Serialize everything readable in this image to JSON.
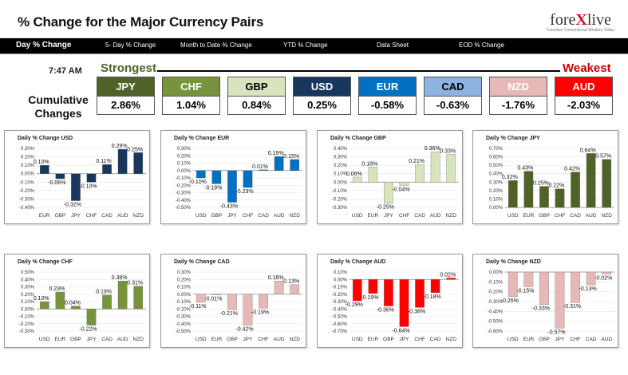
{
  "header": {
    "title": "% Change for the Major Currency Pairs",
    "logo_text": "forexlive",
    "logo_tagline": "Forexlive Conventional Wisdom Today"
  },
  "nav": {
    "items": [
      "Day % Change",
      "5- Day % Change",
      "Month to Date % Change",
      "YTD % Change",
      "Data Sheet",
      "EOD % Change"
    ],
    "active": "Day % Change"
  },
  "summary": {
    "time": "7:47 AM",
    "strongest": "Strongest",
    "weakest": "Weakest",
    "cumulative_label": "Cumulative Changes",
    "currencies": [
      {
        "code": "JPY",
        "value": "2.86%",
        "bg": "#4f6228",
        "fg": "#ffffff"
      },
      {
        "code": "CHF",
        "value": "1.04%",
        "bg": "#77933c",
        "fg": "#ffffff"
      },
      {
        "code": "GBP",
        "value": "0.84%",
        "bg": "#d7e4bd",
        "fg": "#000000"
      },
      {
        "code": "USD",
        "value": "0.25%",
        "bg": "#17375e",
        "fg": "#ffffff"
      },
      {
        "code": "EUR",
        "value": "-0.58%",
        "bg": "#0070c0",
        "fg": "#ffffff"
      },
      {
        "code": "CAD",
        "value": "-0.63%",
        "bg": "#8db3e2",
        "fg": "#000000"
      },
      {
        "code": "NZD",
        "value": "-1.76%",
        "bg": "#e6b9b8",
        "fg": "#ffffff"
      },
      {
        "code": "AUD",
        "value": "-2.03%",
        "bg": "#ff0000",
        "fg": "#ffffff"
      }
    ]
  },
  "chart_data": [
    {
      "type": "bar",
      "title": "Daily % Change USD",
      "categories": [
        "EUR",
        "GBP",
        "JPY",
        "CHF",
        "CAD",
        "AUD",
        "NZD"
      ],
      "values": [
        0.1,
        -0.06,
        -0.32,
        -0.1,
        0.11,
        0.29,
        0.25
      ],
      "labels": [
        "0.10%",
        "-0.06%",
        "-0.32%",
        "-0.10%",
        "0.11%",
        "0.29%",
        "0.25%"
      ],
      "ylim": [
        -0.4,
        0.3
      ],
      "yticks": [
        "0.30%",
        "0.20%",
        "0.10%",
        "0.00%",
        "-0.10%",
        "-0.20%",
        "-0.30%",
        "-0.40%"
      ],
      "color": "#17375e"
    },
    {
      "type": "bar",
      "title": "Daily % Change EUR",
      "categories": [
        "USD",
        "GBP",
        "JPY",
        "CHF",
        "CAD",
        "AUD",
        "NZD"
      ],
      "values": [
        -0.1,
        -0.18,
        -0.43,
        -0.23,
        0.01,
        0.19,
        0.15
      ],
      "labels": [
        "-0.10%",
        "-0.18%",
        "-0.43%",
        "-0.23%",
        "0.01%",
        "0.19%",
        "0.15%"
      ],
      "ylim": [
        -0.5,
        0.3
      ],
      "yticks": [
        "0.30%",
        "0.20%",
        "0.10%",
        "0.00%",
        "-0.10%",
        "-0.20%",
        "-0.30%",
        "-0.40%",
        "-0.50%"
      ],
      "color": "#0070c0"
    },
    {
      "type": "bar",
      "title": "Daily % Change GBP",
      "categories": [
        "USD",
        "EUR",
        "JPY",
        "CHF",
        "CAD",
        "AUD",
        "NZD"
      ],
      "values": [
        0.06,
        0.18,
        -0.25,
        -0.04,
        0.21,
        0.36,
        0.33
      ],
      "labels": [
        "0.06%",
        "0.18%",
        "-0.25%",
        "-0.04%",
        "0.21%",
        "0.36%",
        "0.33%"
      ],
      "ylim": [
        -0.3,
        0.4
      ],
      "yticks": [
        "0.40%",
        "0.30%",
        "0.20%",
        "0.10%",
        "0.00%",
        "-0.10%",
        "-0.20%",
        "-0.30%"
      ],
      "color": "#d7e4bd"
    },
    {
      "type": "bar",
      "title": "Daily % Change JPY",
      "categories": [
        "USD",
        "EUR",
        "GBP",
        "CHF",
        "CAD",
        "AUD",
        "NZD"
      ],
      "values": [
        0.32,
        0.43,
        0.25,
        0.22,
        0.42,
        0.64,
        0.57
      ],
      "labels": [
        "0.32%",
        "0.43%",
        "0.25%",
        "0.22%",
        "0.42%",
        "0.64%",
        "0.57%"
      ],
      "ylim": [
        0,
        0.7
      ],
      "yticks": [
        "0.70%",
        "0.60%",
        "0.50%",
        "0.40%",
        "0.30%",
        "0.20%",
        "0.10%",
        "0.00%"
      ],
      "color": "#4f6228"
    },
    {
      "type": "bar",
      "title": "Daily % Change CHF",
      "categories": [
        "USD",
        "EUR",
        "GBP",
        "JPY",
        "CAD",
        "AUD",
        "NZD"
      ],
      "values": [
        0.1,
        0.23,
        0.04,
        -0.22,
        0.19,
        0.38,
        0.31
      ],
      "labels": [
        "0.10%",
        "0.23%",
        "0.04%",
        "-0.22%",
        "0.19%",
        "0.38%",
        "0.31%"
      ],
      "ylim": [
        -0.3,
        0.5
      ],
      "yticks": [
        "0.50%",
        "0.40%",
        "0.30%",
        "0.20%",
        "0.10%",
        "0.00%",
        "-0.10%",
        "-0.20%",
        "-0.30%"
      ],
      "color": "#77933c"
    },
    {
      "type": "bar",
      "title": "Daily % Change CAD",
      "categories": [
        "USD",
        "EUR",
        "GBP",
        "JPY",
        "CHF",
        "AUD",
        "NZD"
      ],
      "values": [
        -0.11,
        -0.01,
        -0.21,
        -0.42,
        -0.19,
        0.18,
        0.13
      ],
      "labels": [
        "-0.11%",
        "-0.01%",
        "-0.21%",
        "-0.42%",
        "-0.19%",
        "0.18%",
        "0.13%"
      ],
      "ylim": [
        -0.5,
        0.3
      ],
      "yticks": [
        "0.30%",
        "0.20%",
        "0.10%",
        "0.00%",
        "-0.10%",
        "-0.20%",
        "-0.30%",
        "-0.40%",
        "-0.50%"
      ],
      "color": "#e6b9b8"
    },
    {
      "type": "bar",
      "title": "Daily % Change AUD",
      "categories": [
        "USD",
        "EUR",
        "GBP",
        "JPY",
        "CHF",
        "CAD",
        "NZD"
      ],
      "values": [
        -0.29,
        -0.19,
        -0.36,
        -0.64,
        -0.38,
        -0.18,
        0.02
      ],
      "labels": [
        "-0.29%",
        "-0.19%",
        "-0.36%",
        "-0.64%",
        "-0.38%",
        "-0.18%",
        "0.02%"
      ],
      "ylim": [
        -0.7,
        0.1
      ],
      "yticks": [
        "0.10%",
        "0.00%",
        "-0.10%",
        "-0.20%",
        "-0.30%",
        "-0.40%",
        "-0.50%",
        "-0.60%",
        "-0.70%"
      ],
      "color": "#ff0000"
    },
    {
      "type": "bar",
      "title": "Daily % Change NZD",
      "categories": [
        "USD",
        "EUR",
        "GBP",
        "JPY",
        "CHF",
        "CAD",
        "AUD"
      ],
      "values": [
        -0.25,
        -0.15,
        -0.33,
        -0.57,
        -0.31,
        -0.13,
        -0.02
      ],
      "labels": [
        "-0.25%",
        "-0.15%",
        "-0.33%",
        "-0.57%",
        "-0.31%",
        "-0.13%",
        "-0.02%"
      ],
      "ylim": [
        -0.6,
        0.0
      ],
      "yticks": [
        "0.00%",
        "-0.10%",
        "-0.20%",
        "-0.30%",
        "-0.40%",
        "-0.50%",
        "-0.60%"
      ],
      "color": "#e6b9b8"
    }
  ]
}
